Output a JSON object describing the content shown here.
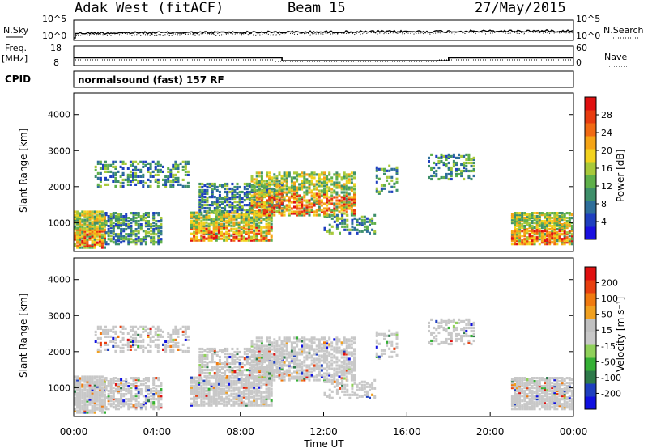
{
  "header": {
    "station": "Adak West (fitACF)",
    "beam": "Beam 15",
    "date": "27/May/2015"
  },
  "colors": {
    "power_scale": [
      "#1a10e0",
      "#1f3fbf",
      "#2e6e9a",
      "#3e8f6a",
      "#5fb04a",
      "#a8c93a",
      "#f2d21e",
      "#f5a416",
      "#f16a14",
      "#e83c10",
      "#e01010"
    ],
    "velocity_scale": [
      "#1010e0",
      "#1f3fbf",
      "#2e7a4a",
      "#35b035",
      "#8fd05a",
      "#c8c8c8",
      "#c0c0c0",
      "#f0a020",
      "#f07a10",
      "#e84010",
      "#e01010"
    ]
  },
  "chart_data": [
    {
      "type": "line",
      "panel": "noise",
      "left_label": "N.Sky",
      "right_label": "N.Search",
      "left_ticks": [
        "10^5",
        "10^0"
      ],
      "right_ticks": [
        "10^5",
        "10^0"
      ]
    },
    {
      "type": "line",
      "panel": "frequency",
      "left_label": "Freq.",
      "left_unit": "[MHz]",
      "left_ticks": [
        "18",
        "8"
      ],
      "right_label": "Nave",
      "right_ticks": [
        "60",
        "0"
      ],
      "freq_series": [
        {
          "x0": 0.0,
          "x1": 10.0,
          "y": 12.0
        },
        {
          "x0": 10.0,
          "x1": 18.0,
          "y": 10.4
        },
        {
          "x0": 18.0,
          "x1": 24.0,
          "y": 12.0
        }
      ]
    },
    {
      "type": "text",
      "panel": "cpid",
      "label": "CPID",
      "text": "normalsound (fast) 157 RF"
    },
    {
      "type": "heatmap",
      "panel": "power",
      "ylabel": "Slant Range [km]",
      "y_ticks": [
        "1000",
        "2000",
        "3000",
        "4000"
      ],
      "ylim": [
        200,
        4600
      ],
      "colorbar_label": "Power [dB]",
      "colorbar_ticks": [
        "4",
        "8",
        "12",
        "16",
        "20",
        "24",
        "28"
      ],
      "clim": [
        0,
        30
      ]
    },
    {
      "type": "heatmap",
      "panel": "velocity",
      "ylabel": "Slant Range [km]",
      "y_ticks": [
        "1000",
        "2000",
        "3000",
        "4000"
      ],
      "ylim": [
        200,
        4600
      ],
      "colorbar_label": "Velocity [m s⁻¹]",
      "colorbar_ticks": [
        "200",
        "100",
        "50",
        "15",
        "-15",
        "-50",
        "-100",
        "-200"
      ],
      "x_ticks": [
        "00:00",
        "04:00",
        "08:00",
        "12:00",
        "16:00",
        "20:00",
        "00:00"
      ],
      "xlabel": "Time UT",
      "xlim": [
        0,
        24
      ]
    }
  ]
}
